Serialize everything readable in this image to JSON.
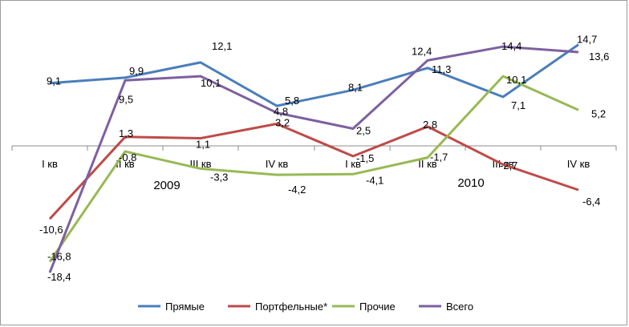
{
  "chart_data": {
    "type": "line",
    "categories": [
      "I кв",
      "II кв",
      "III кв",
      "IV кв",
      "I кв",
      "II кв",
      "III кв",
      "IV кв"
    ],
    "groups": [
      "2009",
      "2010"
    ],
    "ylim": [
      -20,
      16
    ],
    "grid": false,
    "legend_position": "bottom",
    "series": [
      {
        "name": "Прямые",
        "color": "#4a7ebb",
        "values": [
          9.1,
          9.9,
          12.1,
          5.8,
          8.1,
          11.3,
          7.1,
          14.7
        ],
        "labels": [
          "9,1",
          "9,9",
          "12,1",
          "5,8",
          "8,1",
          "11,3",
          "7,1",
          "14,7"
        ]
      },
      {
        "name": "Портфельные*",
        "color": "#be4b48",
        "values": [
          -10.6,
          1.3,
          1.1,
          3.2,
          -1.5,
          2.8,
          -2.7,
          -6.4
        ],
        "labels": [
          "-10,6",
          "1,3",
          "1,1",
          "3,2",
          "-1,5",
          "2,8",
          "-2,7",
          "-6,4"
        ]
      },
      {
        "name": "Прочие",
        "color": "#98b954",
        "values": [
          -16.8,
          -0.8,
          -3.3,
          -4.2,
          -4.1,
          -1.7,
          10.1,
          5.2
        ],
        "labels": [
          "-16,8",
          "-0,8",
          "-3,3",
          "-4,2",
          "-4,1",
          "-1,7",
          "10,1",
          "5,2"
        ]
      },
      {
        "name": "Всего",
        "color": "#7d60a0",
        "values": [
          -18.4,
          9.5,
          10.1,
          4.8,
          2.5,
          12.4,
          14.4,
          13.6
        ],
        "labels": [
          "-18,4",
          "9,5",
          "10,1",
          "4,8",
          "2,5",
          "12,4",
          "14,4",
          "13,6"
        ]
      }
    ]
  }
}
